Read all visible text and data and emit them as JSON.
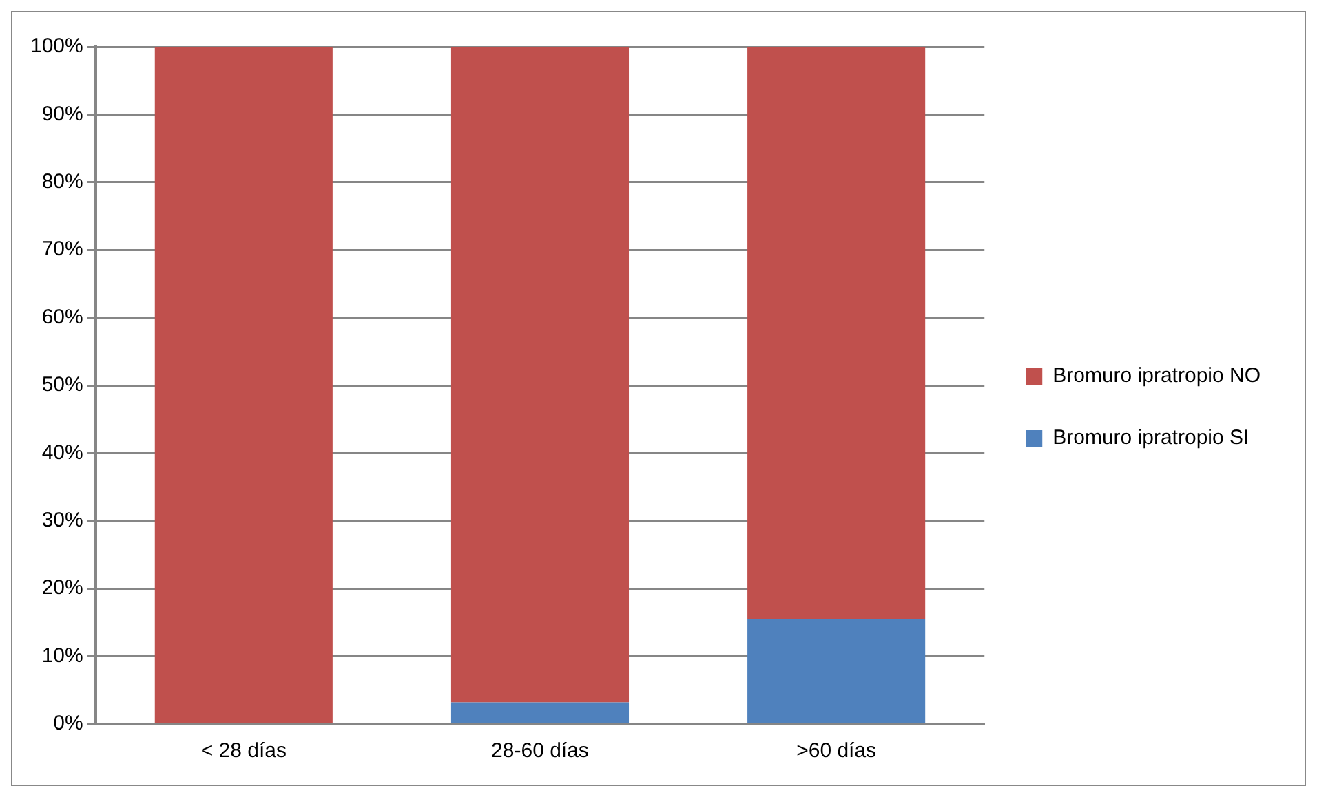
{
  "chart_data": {
    "type": "bar",
    "stacked": true,
    "categories": [
      "< 28 días",
      "28-60 días",
      ">60 días"
    ],
    "series": [
      {
        "name": "Bromuro ipratropio SI",
        "color": "#4f81bd",
        "values": [
          0,
          3.2,
          15.5
        ]
      },
      {
        "name": "Bromuro ipratropio NO",
        "color": "#c0504d",
        "values": [
          100,
          96.8,
          84.5
        ]
      }
    ],
    "ylim": [
      0,
      100
    ],
    "yticks": [
      {
        "value": 0,
        "label": "0%"
      },
      {
        "value": 10,
        "label": "10%"
      },
      {
        "value": 20,
        "label": "20%"
      },
      {
        "value": 30,
        "label": "30%"
      },
      {
        "value": 40,
        "label": "40%"
      },
      {
        "value": 50,
        "label": "50%"
      },
      {
        "value": 60,
        "label": "60%"
      },
      {
        "value": 70,
        "label": "70%"
      },
      {
        "value": 80,
        "label": "80%"
      },
      {
        "value": 90,
        "label": "90%"
      },
      {
        "value": 100,
        "label": "100%"
      }
    ],
    "grid": "y",
    "legend": "right"
  }
}
